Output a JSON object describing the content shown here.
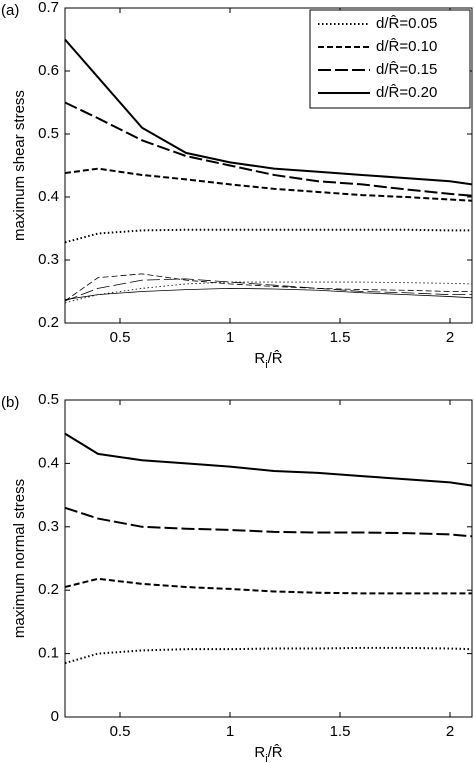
{
  "chart_data": [
    {
      "type": "line",
      "panel_label": "(a)",
      "ylabel": "maximum shear stress",
      "xlabel": [
        "R",
        "i",
        "/R̂"
      ],
      "x": [
        0.25,
        0.4,
        0.6,
        0.8,
        1,
        1.2,
        1.4,
        1.6,
        1.8,
        2,
        2.1
      ],
      "xlim": [
        0.25,
        2.1
      ],
      "xticks": [
        0.5,
        1,
        1.5,
        2
      ],
      "ylim": [
        0.2,
        0.7
      ],
      "yticks": [
        0.2,
        0.3,
        0.4,
        0.5,
        0.6,
        0.7
      ],
      "legend": "upper right",
      "series": [
        {
          "name": "d/R̂=0.05",
          "color": "#000000",
          "style": "dotted",
          "width": 2,
          "values": [
            0.328,
            0.342,
            0.347,
            0.348,
            0.348,
            0.348,
            0.348,
            0.348,
            0.348,
            0.347,
            0.347
          ]
        },
        {
          "name": "d/R̂=0.10",
          "color": "#000000",
          "style": "dashed",
          "width": 2,
          "values": [
            0.438,
            0.445,
            0.435,
            0.428,
            0.42,
            0.413,
            0.408,
            0.403,
            0.4,
            0.396,
            0.394
          ]
        },
        {
          "name": "d/R̂=0.15",
          "color": "#000000",
          "style": "longdash",
          "width": 2,
          "values": [
            0.55,
            0.525,
            0.49,
            0.465,
            0.45,
            0.435,
            0.425,
            0.42,
            0.412,
            0.405,
            0.402
          ]
        },
        {
          "name": "d/R̂=0.20",
          "color": "#000000",
          "style": "solid",
          "width": 2,
          "values": [
            0.65,
            0.59,
            0.51,
            0.47,
            0.455,
            0.445,
            0.44,
            0.435,
            0.43,
            0.425,
            0.42
          ]
        },
        {
          "color": "#000000",
          "style": "dotted",
          "width": 0.8,
          "values": [
            0.232,
            0.245,
            0.255,
            0.262,
            0.265,
            0.265,
            0.265,
            0.265,
            0.264,
            0.263,
            0.262
          ]
        },
        {
          "color": "#000000",
          "style": "dashed",
          "width": 0.8,
          "values": [
            0.235,
            0.272,
            0.278,
            0.268,
            0.262,
            0.258,
            0.255,
            0.253,
            0.252,
            0.25,
            0.25
          ]
        },
        {
          "color": "#000000",
          "style": "longdash",
          "width": 0.8,
          "values": [
            0.235,
            0.255,
            0.268,
            0.27,
            0.265,
            0.26,
            0.255,
            0.25,
            0.248,
            0.245,
            0.245
          ]
        },
        {
          "color": "#000000",
          "style": "solid",
          "width": 0.8,
          "values": [
            0.237,
            0.245,
            0.25,
            0.253,
            0.255,
            0.254,
            0.252,
            0.248,
            0.245,
            0.242,
            0.24
          ]
        }
      ]
    },
    {
      "type": "line",
      "panel_label": "(b)",
      "ylabel": "maximum normal stress",
      "xlabel": [
        "R",
        "i",
        "/R̂"
      ],
      "x": [
        0.25,
        0.4,
        0.6,
        0.8,
        1,
        1.2,
        1.4,
        1.6,
        1.8,
        2,
        2.1
      ],
      "xlim": [
        0.25,
        2.1
      ],
      "xticks": [
        0.5,
        1,
        1.5,
        2
      ],
      "ylim": [
        0,
        0.5
      ],
      "yticks": [
        0,
        0.1,
        0.2,
        0.3,
        0.4,
        0.5
      ],
      "series": [
        {
          "color": "#000000",
          "style": "dotted",
          "width": 2,
          "values": [
            0.085,
            0.1,
            0.105,
            0.107,
            0.107,
            0.108,
            0.108,
            0.109,
            0.109,
            0.108,
            0.107
          ]
        },
        {
          "color": "#000000",
          "style": "dashed",
          "width": 2,
          "values": [
            0.205,
            0.218,
            0.21,
            0.205,
            0.202,
            0.198,
            0.196,
            0.195,
            0.195,
            0.195,
            0.195
          ]
        },
        {
          "color": "#000000",
          "style": "longdash",
          "width": 2,
          "values": [
            0.33,
            0.313,
            0.3,
            0.297,
            0.295,
            0.292,
            0.291,
            0.291,
            0.29,
            0.288,
            0.285
          ]
        },
        {
          "color": "#000000",
          "style": "solid",
          "width": 2,
          "values": [
            0.447,
            0.415,
            0.405,
            0.4,
            0.395,
            0.388,
            0.385,
            0.38,
            0.375,
            0.37,
            0.365
          ]
        }
      ]
    }
  ]
}
